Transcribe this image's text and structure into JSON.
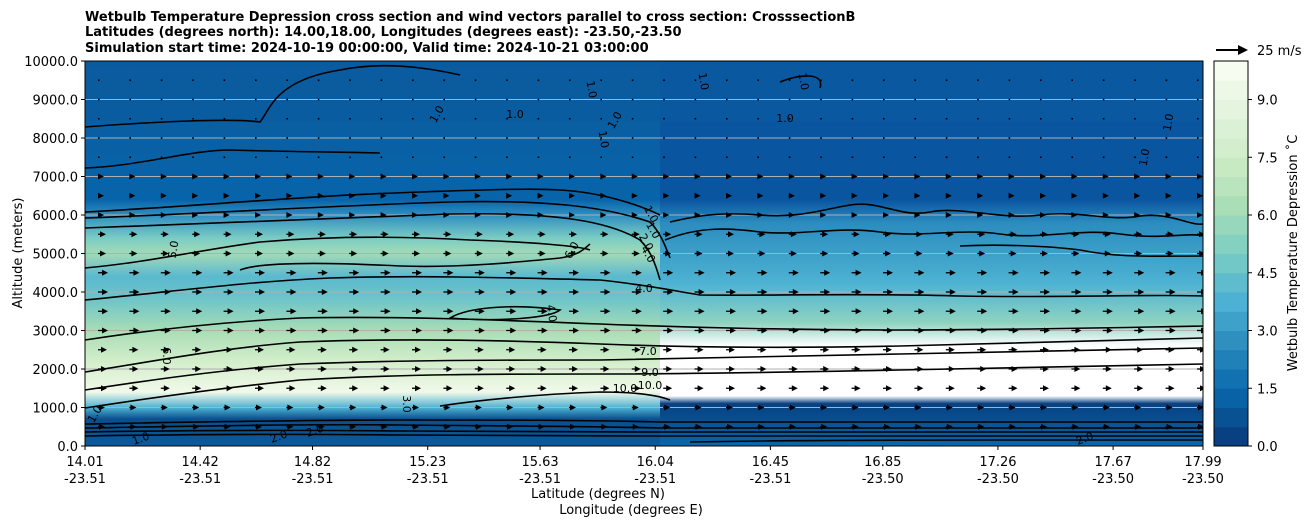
{
  "chart_data": {
    "type": "heatmap",
    "title": [
      "Wetbulb Temperature Depression cross section and wind vectors parallel to cross section: CrosssectionB",
      "Latitudes (degrees north): 14.00,18.00, Longitudes (degrees east): -23.50,-23.50",
      "Simulation start time: 2024-10-19 00:00:00, Valid time: 2024-10-21 03:00:00"
    ],
    "ylabel": "Altitude (meters)",
    "xlabel_lines": [
      "Latitude (degrees N)",
      "Longitude (degrees E)"
    ],
    "ylim": [
      0,
      10000
    ],
    "y_ticks": [
      "0.0",
      "1000.0",
      "2000.0",
      "3000.0",
      "4000.0",
      "5000.0",
      "6000.0",
      "7000.0",
      "8000.0",
      "9000.0",
      "10000.0"
    ],
    "y_tick_values": [
      0,
      1000,
      2000,
      3000,
      4000,
      5000,
      6000,
      7000,
      8000,
      9000,
      10000
    ],
    "x_range": [
      14.01,
      17.99
    ],
    "x_ticks": [
      {
        "lat": "14.01",
        "lon": "-23.51"
      },
      {
        "lat": "14.42",
        "lon": "-23.51"
      },
      {
        "lat": "14.82",
        "lon": "-23.51"
      },
      {
        "lat": "15.23",
        "lon": "-23.51"
      },
      {
        "lat": "15.63",
        "lon": "-23.51"
      },
      {
        "lat": "16.04",
        "lon": "-23.51"
      },
      {
        "lat": "16.45",
        "lon": "-23.51"
      },
      {
        "lat": "16.85",
        "lon": "-23.50"
      },
      {
        "lat": "17.26",
        "lon": "-23.50"
      },
      {
        "lat": "17.67",
        "lon": "-23.50"
      },
      {
        "lat": "17.99",
        "lon": "-23.50"
      }
    ],
    "x_tick_values": [
      14.01,
      14.42,
      14.82,
      15.23,
      15.63,
      16.04,
      16.45,
      16.85,
      17.26,
      17.67,
      17.99
    ],
    "grid": "horizontal",
    "colorbar": {
      "label": "Wetbulb Temperature Depression $^\\circ$C",
      "label_display": "Wetbulb Temperature Depression ˚C",
      "range": [
        0,
        10
      ],
      "ticks": [
        "0.0",
        "1.5",
        "3.0",
        "4.5",
        "6.0",
        "7.5",
        "9.0"
      ],
      "tick_values": [
        0,
        1.5,
        3.0,
        4.5,
        6.0,
        7.5,
        9.0
      ],
      "colors": [
        "#084081",
        "#0868ac",
        "#2b8cbe",
        "#4eb3d3",
        "#7bccc4",
        "#a8ddb5",
        "#ccebc5",
        "#e0f3db",
        "#f7fcf0"
      ]
    },
    "wind_key": {
      "label": "25 m/s",
      "speed": 25
    },
    "layers": [
      {
        "alt": [
          0,
          700
        ],
        "value": 0.5
      },
      {
        "alt": [
          700,
          1200
        ],
        "value": 10.0
      },
      {
        "alt": [
          1200,
          2000
        ],
        "value": 8.5
      },
      {
        "alt": [
          2000,
          3000
        ],
        "value": 6.5
      },
      {
        "alt": [
          3000,
          4500
        ],
        "value": 5.0
      },
      {
        "alt": [
          4500,
          5500
        ],
        "value": 6.5
      },
      {
        "alt": [
          5500,
          6200
        ],
        "value": 3.0
      },
      {
        "alt": [
          6200,
          10000
        ],
        "value": 0.6
      }
    ],
    "contour_labels": [
      "1.0",
      "2.0",
      "4.0",
      "5.0",
      "6.0",
      "7.0",
      "9.0",
      "10.0",
      "3.0"
    ]
  }
}
